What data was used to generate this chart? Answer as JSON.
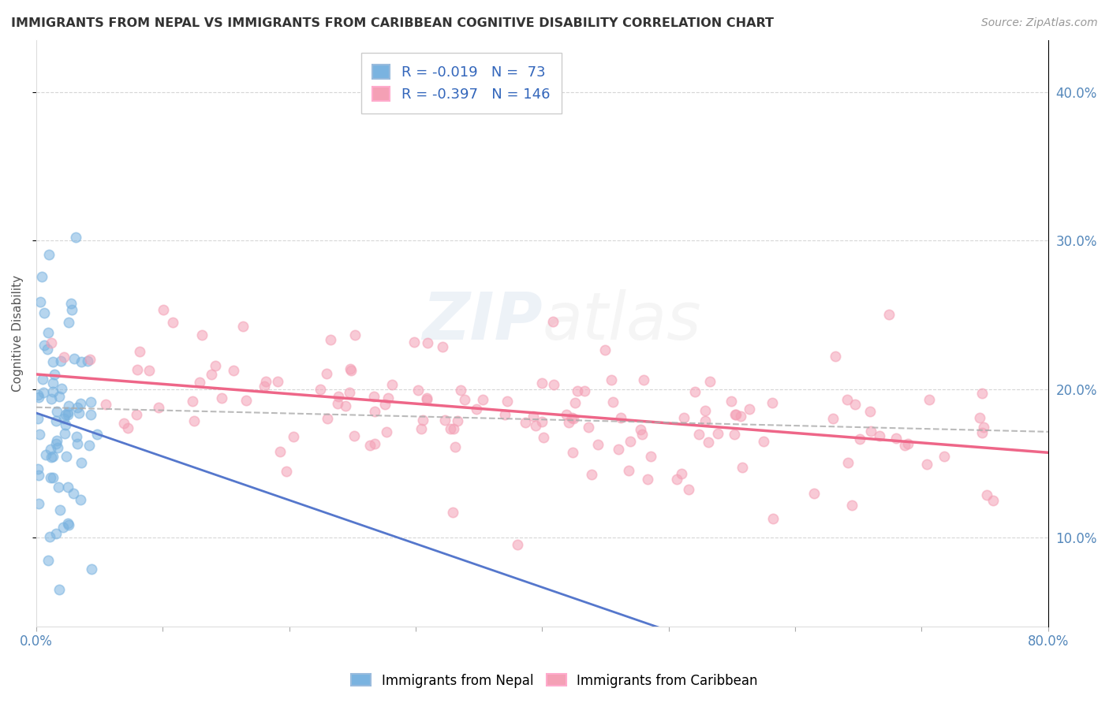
{
  "title": "IMMIGRANTS FROM NEPAL VS IMMIGRANTS FROM CARIBBEAN COGNITIVE DISABILITY CORRELATION CHART",
  "source": "Source: ZipAtlas.com",
  "ylabel": "Cognitive Disability",
  "legend_label1": "Immigrants from Nepal",
  "legend_label2": "Immigrants from Caribbean",
  "R1": -0.019,
  "N1": 73,
  "R2": -0.397,
  "N2": 146,
  "color1": "#7ab3e0",
  "color2": "#f4a0b5",
  "trendline1_color": "#5577cc",
  "trendline2_color": "#ee6688",
  "xlim": [
    0.0,
    0.8
  ],
  "ylim": [
    0.04,
    0.435
  ],
  "yticks": [
    0.1,
    0.2,
    0.3,
    0.4
  ],
  "ytick_labels": [
    "10.0%",
    "20.0%",
    "30.0%",
    "40.0%"
  ],
  "xticks": [
    0.0,
    0.1,
    0.2,
    0.3,
    0.4,
    0.5,
    0.6,
    0.7,
    0.8
  ],
  "xtick_labels": [
    "0.0%",
    "",
    "",
    "",
    "",
    "",
    "",
    "",
    "80.0%"
  ],
  "background_color": "#ffffff",
  "grid_color": "#cccccc",
  "watermark": "ZIPatlas",
  "seed1": 42,
  "seed2": 123
}
